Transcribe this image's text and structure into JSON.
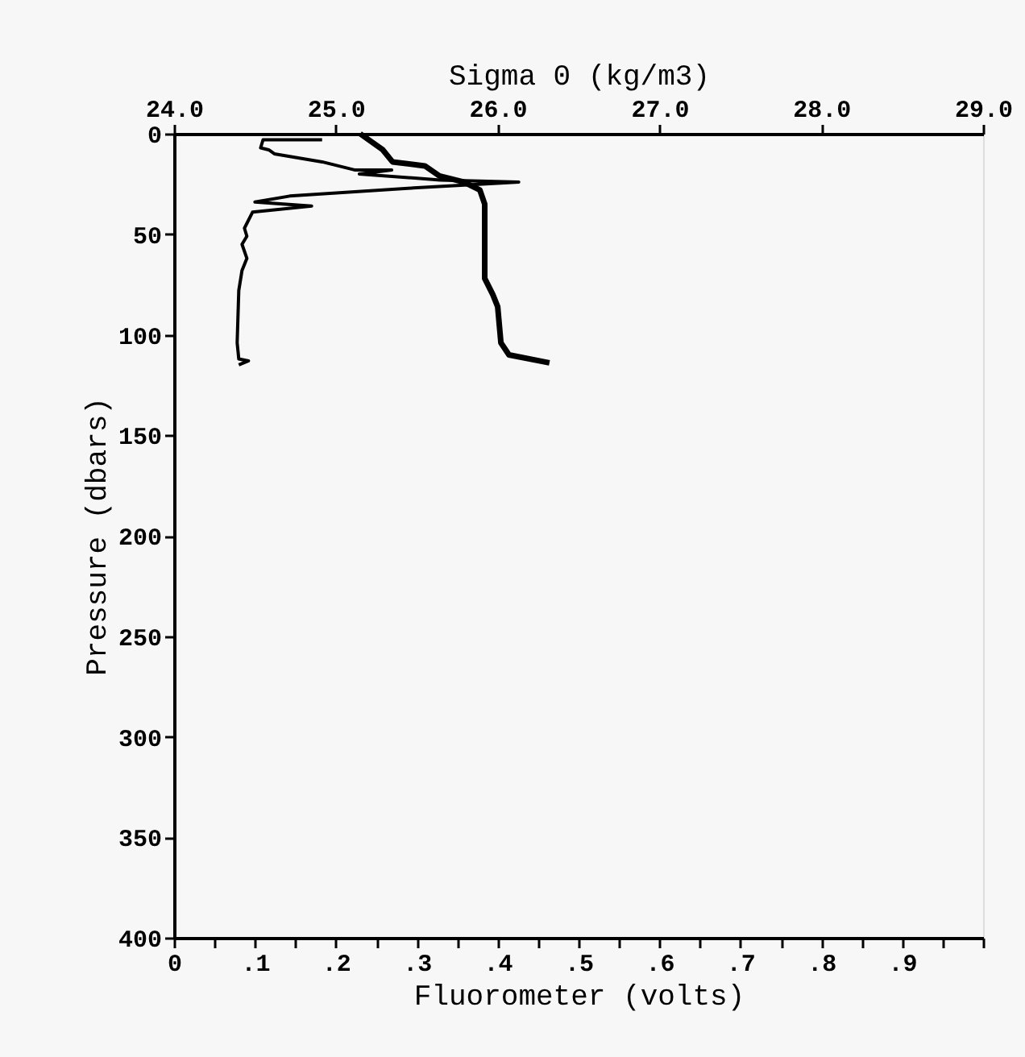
{
  "chart_data": {
    "type": "line",
    "xlabel": "Fluorometer (volts)",
    "ylabel": "Pressure (dbars)",
    "x2label": "Sigma 0 (kg/m3)",
    "xlim": [
      0,
      1
    ],
    "xticks": [
      0,
      {
        "value": 0.05,
        "label": null
      },
      {
        "value": 0.1,
        "label": ".1"
      },
      {
        "value": 0.15,
        "label": null
      },
      {
        "value": 0.2,
        "label": ".2"
      },
      {
        "value": 0.25,
        "label": null
      },
      {
        "value": 0.3,
        "label": ".3"
      },
      {
        "value": 0.35,
        "label": null
      },
      {
        "value": 0.4,
        "label": ".4"
      },
      {
        "value": 0.45,
        "label": null
      },
      {
        "value": 0.5,
        "label": ".5"
      },
      {
        "value": 0.55,
        "label": null
      },
      {
        "value": 0.6,
        "label": ".6"
      },
      {
        "value": 0.65,
        "label": null
      },
      {
        "value": 0.7,
        "label": ".7"
      },
      {
        "value": 0.75,
        "label": null
      },
      {
        "value": 0.8,
        "label": ".8"
      },
      {
        "value": 0.85,
        "label": null
      },
      {
        "value": 0.9,
        "label": ".9"
      },
      {
        "value": 0.95,
        "label": null
      },
      {
        "value": 1,
        "label": null
      }
    ],
    "x2lim": [
      24,
      29
    ],
    "x2ticks": [
      {
        "value": 24,
        "label": "24.0"
      },
      {
        "value": 25,
        "label": "25.0"
      },
      {
        "value": 26,
        "label": "26.0"
      },
      {
        "value": 27,
        "label": "27.0"
      },
      {
        "value": 28,
        "label": "28.0"
      },
      {
        "value": 29,
        "label": "29.0"
      }
    ],
    "ylim": [
      400,
      0
    ],
    "yticks": [
      0,
      50,
      100,
      150,
      200,
      250,
      300,
      350,
      400
    ],
    "grid": false,
    "marker": "none",
    "line_style": "solid",
    "series": [
      {
        "color": "#000000",
        "x": [
          0.183,
          0.11,
          0.107,
          0.117,
          0.124,
          0.183,
          0.223,
          0.269,
          0.229,
          0.329,
          0.426,
          0.296,
          0.143,
          0.1,
          0.17,
          0.097,
          0.087,
          0.09,
          0.084,
          0.09,
          0.084,
          0.08,
          0.078,
          0.08,
          0.092,
          0.08
        ],
        "values": [
          3,
          3,
          7,
          8,
          10,
          14,
          18,
          18,
          20,
          23,
          24,
          27,
          31,
          34,
          36,
          39,
          47,
          51,
          55,
          62,
          68,
          78,
          104,
          112,
          113,
          115
        ]
      },
      {
        "color": "#000000",
        "axis": "x2",
        "x": [
          25.15,
          25.29,
          25.35,
          25.55,
          25.64,
          25.79,
          25.89,
          25.92,
          25.92,
          25.97,
          26.0,
          26.02,
          26.07,
          26.32
        ],
        "values": [
          0,
          8,
          14,
          16,
          21,
          24,
          28,
          35,
          72,
          80,
          86,
          104,
          110,
          114
        ]
      }
    ]
  }
}
